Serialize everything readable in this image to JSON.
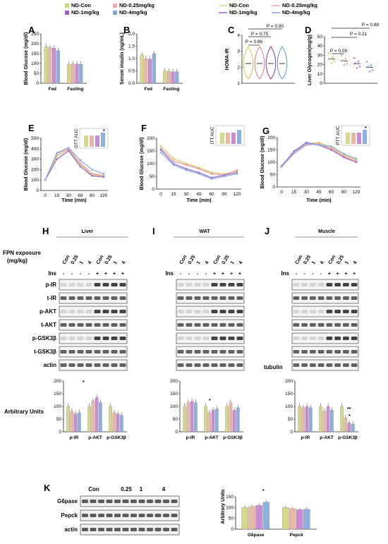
{
  "legend": {
    "left": [
      {
        "label": "ND-Con",
        "color": "#cfd67a"
      },
      {
        "label": "ND-0.25mg/kg",
        "color": "#f0a9b6"
      },
      {
        "label": "ND-1mg/kg",
        "color": "#a05bc8"
      },
      {
        "label": "ND-4mg/kg",
        "color": "#7fa7d6"
      }
    ],
    "right": [
      {
        "label": "ND-Con",
        "color": "#f2d08a"
      },
      {
        "label": "ND-0.25mg/kg",
        "color": "#e7a3b0"
      },
      {
        "label": "ND-1mg/kg",
        "color": "#a05bc8"
      },
      {
        "label": "ND-4mg/kg",
        "color": "#7fa7d6"
      }
    ]
  },
  "colors": {
    "con": "#d6d98a",
    "p025": "#e9b7a6",
    "p1": "#c98bd3",
    "p4": "#8cb1e0"
  },
  "panels": {
    "A": {
      "letter": "A",
      "ylabel": "Blood Glucose (mg/dl)",
      "yticks": [
        "0",
        "50",
        "100",
        "150",
        "200",
        "250"
      ],
      "groups": [
        "Fed",
        "Fasting"
      ]
    },
    "B": {
      "letter": "B",
      "ylabel": "Serum insulin (ng/mL)",
      "yticks": [
        "0.0",
        "0.5",
        "1.0",
        "1.5",
        "2.0"
      ],
      "groups": [
        "Fed",
        "Fasting"
      ]
    },
    "C": {
      "letter": "C",
      "ylabel": "HOMA-IR",
      "yticks": [
        "1",
        "2",
        "3",
        "4"
      ],
      "pvals": [
        "P = 0.86",
        "P = 0.75",
        "P = 0.90"
      ]
    },
    "D": {
      "letter": "D",
      "ylabel": "Liver Glycogen(mg/g)",
      "yticks": [
        "0",
        "10",
        "20",
        "30",
        "40",
        "50"
      ],
      "pvals": [
        "P = 0.09",
        "P = 0.21",
        "P = 0.88"
      ]
    },
    "E": {
      "letter": "E",
      "ylabel": "Blood Glucose (mg/dl)",
      "xlabel": "Time (min)",
      "yticks": [
        "0",
        "100",
        "200",
        "300",
        "400",
        "500"
      ],
      "xticks": [
        "0",
        "15",
        "30",
        "60",
        "90",
        "120"
      ],
      "inset": "GTT AUC",
      "star": "*"
    },
    "F": {
      "letter": "F",
      "ylabel": "Blood Glucose (mg/dl)",
      "xlabel": "Time (min)",
      "yticks": [
        "0",
        "50",
        "100",
        "150",
        "200"
      ],
      "xticks": [
        "0",
        "15",
        "30",
        "45",
        "60",
        "90",
        "120"
      ],
      "inset": "ITT AUC"
    },
    "G": {
      "letter": "G",
      "ylabel": "Blood Glucose (mg/dl)",
      "xlabel": "Time (min)",
      "yticks": [
        "0",
        "50",
        "100",
        "150",
        "200"
      ],
      "xticks": [
        "0",
        "15",
        "30",
        "45",
        "60",
        "90",
        "120"
      ],
      "inset": "PTT AUC",
      "star": "*"
    },
    "H": {
      "letter": "H",
      "title": "Liver",
      "ylabel": "Arbitrary Units",
      "yticks": [
        "0",
        "50",
        "100",
        "150",
        "200"
      ],
      "groups": [
        "p-IR",
        "p-AKT",
        "p-GSK3β"
      ],
      "star": "*"
    },
    "I": {
      "letter": "I",
      "title": "WAT",
      "ylabel": "Arbitrary Units",
      "yticks": [
        "0",
        "50",
        "100",
        "150",
        "200"
      ],
      "groups": [
        "p-IR",
        "p-AKT",
        "p-GSK3β"
      ],
      "star": "*"
    },
    "J": {
      "letter": "J",
      "title": "Muscle",
      "ylabel": "Arbitrary Units",
      "yticks": [
        "0",
        "50",
        "100",
        "150",
        "200"
      ],
      "groups": [
        "p-IR",
        "p-AKT",
        "p-GSK3β"
      ],
      "stars": [
        "**",
        "*"
      ]
    },
    "K": {
      "letter": "K",
      "ylabel": "Arbitrary Units",
      "yticks": [
        "0",
        "50",
        "100",
        "150"
      ],
      "groups": [
        "G6pase",
        "Pepck"
      ],
      "star": "*",
      "lanes": [
        "Con",
        "0.25",
        "1",
        "4"
      ],
      "bands": [
        "G6pase",
        "Pepck",
        "actin"
      ]
    }
  },
  "blots": {
    "exposure": "FPN exposure",
    "unit": "(mg/kg)",
    "ins": "Ins",
    "lanes": [
      "Con",
      "0.25",
      "1",
      "4",
      "Con",
      "0.25",
      "1",
      "4"
    ],
    "ins_signs": [
      "-",
      "-",
      "-",
      "-",
      "+",
      "+",
      "+",
      "+"
    ],
    "rows_liver": [
      "p-IR",
      "t-IR",
      "p-AKT",
      "t-AKT",
      "p-GSK3β",
      "t-GSK3β",
      "actin"
    ],
    "rows_muscle_last": "tubulin"
  },
  "chart_data": [
    {
      "type": "bar",
      "panel": "A",
      "categories": [
        "Fed",
        "Fasting"
      ],
      "ylim": [
        0,
        250
      ],
      "series": [
        {
          "values": [
            185,
            95
          ]
        },
        {
          "values": [
            180,
            98
          ]
        },
        {
          "values": [
            178,
            97
          ]
        },
        {
          "values": [
            165,
            96
          ]
        }
      ]
    },
    {
      "type": "bar",
      "panel": "B",
      "categories": [
        "Fed",
        "Fasting"
      ],
      "ylim": [
        0,
        2.0
      ],
      "series": [
        {
          "values": [
            1.15,
            0.5
          ]
        },
        {
          "values": [
            1.0,
            0.48
          ]
        },
        {
          "values": [
            0.98,
            0.47
          ]
        },
        {
          "values": [
            1.2,
            0.47
          ]
        }
      ]
    },
    {
      "type": "bar",
      "panel": "D",
      "ylim": [
        0,
        50
      ],
      "series": [
        {
          "values": [
            26
          ]
        },
        {
          "values": [
            24
          ]
        },
        {
          "values": [
            21
          ]
        },
        {
          "values": [
            17
          ]
        }
      ]
    },
    {
      "type": "line",
      "panel": "E",
      "x": [
        0,
        15,
        30,
        60,
        90,
        120
      ],
      "ylim": [
        0,
        500
      ],
      "series": [
        {
          "values": [
            100,
            330,
            390,
            250,
            150,
            140
          ]
        },
        {
          "values": [
            100,
            350,
            400,
            260,
            160,
            145
          ]
        },
        {
          "values": [
            100,
            300,
            380,
            230,
            140,
            130
          ]
        },
        {
          "values": [
            100,
            360,
            410,
            290,
            200,
            160
          ]
        }
      ]
    },
    {
      "type": "line",
      "panel": "F",
      "x": [
        0,
        15,
        30,
        45,
        60,
        90,
        120
      ],
      "ylim": [
        0,
        200
      ],
      "series": [
        {
          "values": [
            170,
            120,
            100,
            85,
            65,
            60,
            70
          ]
        },
        {
          "values": [
            160,
            110,
            95,
            80,
            60,
            55,
            75
          ]
        },
        {
          "values": [
            155,
            100,
            80,
            65,
            45,
            55,
            65
          ]
        },
        {
          "values": [
            145,
            95,
            75,
            60,
            40,
            50,
            60
          ]
        }
      ]
    },
    {
      "type": "line",
      "panel": "G",
      "x": [
        0,
        15,
        30,
        45,
        60,
        90,
        120
      ],
      "ylim": [
        0,
        200
      ],
      "series": [
        {
          "values": [
            85,
            140,
            175,
            180,
            160,
            130,
            110
          ]
        },
        {
          "values": [
            80,
            135,
            170,
            175,
            155,
            125,
            105
          ]
        },
        {
          "values": [
            85,
            145,
            180,
            170,
            150,
            120,
            100
          ]
        },
        {
          "values": [
            82,
            140,
            175,
            170,
            165,
            135,
            115
          ]
        }
      ]
    },
    {
      "type": "bar",
      "panel": "H",
      "categories": [
        "p-IR",
        "p-AKT",
        "p-GSK3β"
      ],
      "ylim": [
        0,
        200
      ],
      "series": [
        {
          "values": [
            100,
            100,
            100
          ]
        },
        {
          "values": [
            80,
            120,
            75
          ]
        },
        {
          "values": [
            70,
            135,
            70
          ]
        },
        {
          "values": [
            75,
            115,
            65
          ]
        }
      ]
    },
    {
      "type": "bar",
      "panel": "I",
      "categories": [
        "p-IR",
        "p-AKT",
        "p-GSK3β"
      ],
      "ylim": [
        0,
        200
      ],
      "series": [
        {
          "values": [
            100,
            100,
            100
          ]
        },
        {
          "values": [
            115,
            75,
            115
          ]
        },
        {
          "values": [
            120,
            85,
            85
          ]
        },
        {
          "values": [
            115,
            90,
            95
          ]
        }
      ]
    },
    {
      "type": "bar",
      "panel": "J",
      "categories": [
        "p-IR",
        "p-AKT",
        "p-GSK3β"
      ],
      "ylim": [
        0,
        200
      ],
      "series": [
        {
          "values": [
            100,
            100,
            100
          ]
        },
        {
          "values": [
            95,
            80,
            55
          ]
        },
        {
          "values": [
            100,
            100,
            35
          ]
        },
        {
          "values": [
            95,
            85,
            30
          ]
        }
      ]
    },
    {
      "type": "bar",
      "panel": "K",
      "categories": [
        "G6pase",
        "Pepck"
      ],
      "ylim": [
        0,
        150
      ],
      "series": [
        {
          "values": [
            100,
            100
          ]
        },
        {
          "values": [
            105,
            95
          ]
        },
        {
          "values": [
            110,
            90
          ]
        },
        {
          "values": [
            125,
            92
          ]
        }
      ]
    }
  ]
}
